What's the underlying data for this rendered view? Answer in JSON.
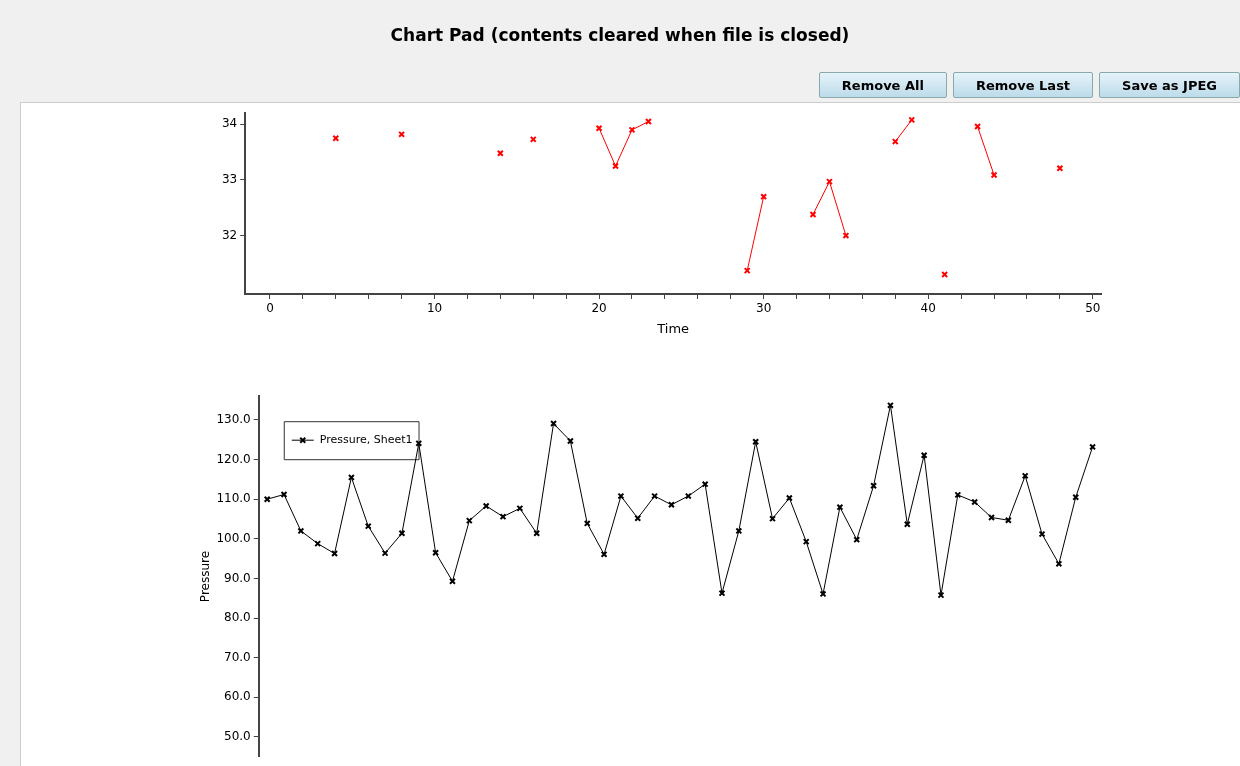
{
  "chart_data": [
    {
      "type": "other",
      "title": "Chart Pad (contents cleared when file is closed)",
      "annotations": [
        "Remove All",
        "Remove Last",
        "Save as JPEG"
      ]
    },
    {
      "type": "line",
      "xlabel": "Time",
      "xlim": [
        -1.5,
        50.5
      ],
      "ylim": [
        30.95,
        34.2
      ],
      "xticks": [
        0,
        {
          "value": 2,
          "label": null
        },
        {
          "value": 4,
          "label": null
        },
        {
          "value": 6,
          "label": null
        },
        {
          "value": 8,
          "label": null
        },
        10,
        {
          "value": 12,
          "label": null
        },
        {
          "value": 14,
          "label": null
        },
        {
          "value": 16,
          "label": null
        },
        {
          "value": 18,
          "label": null
        },
        20,
        {
          "value": 22,
          "label": null
        },
        {
          "value": 24,
          "label": null
        },
        {
          "value": 26,
          "label": null
        },
        {
          "value": 28,
          "label": null
        },
        30,
        {
          "value": 32,
          "label": null
        },
        {
          "value": 34,
          "label": null
        },
        {
          "value": 36,
          "label": null
        },
        {
          "value": 38,
          "label": null
        },
        40,
        {
          "value": 42,
          "label": null
        },
        {
          "value": 44,
          "label": null
        },
        {
          "value": 46,
          "label": null
        },
        {
          "value": 48,
          "label": null
        },
        50
      ],
      "yticks": [
        32,
        33,
        34
      ],
      "grid": false,
      "legend": false,
      "marker": "cross",
      "series": [
        {
          "color": "#ff0000",
          "x": [
            4
          ],
          "values": [
            33.75
          ]
        },
        {
          "color": "#ff0000",
          "x": [
            8
          ],
          "values": [
            33.82
          ]
        },
        {
          "color": "#ff0000",
          "x": [
            14
          ],
          "values": [
            33.48
          ]
        },
        {
          "color": "#ff0000",
          "x": [
            16
          ],
          "values": [
            33.73
          ]
        },
        {
          "color": "#ff0000",
          "x": [
            20,
            21,
            22,
            23
          ],
          "values": [
            33.93,
            33.25,
            33.9,
            34.05
          ]
        },
        {
          "color": "#ff0000",
          "x": [
            29,
            30
          ],
          "values": [
            31.37,
            32.7
          ]
        },
        {
          "color": "#ff0000",
          "x": [
            33,
            34,
            35
          ],
          "values": [
            32.38,
            32.97,
            32.0
          ]
        },
        {
          "color": "#ff0000",
          "x": [
            38,
            39
          ],
          "values": [
            33.69,
            34.08
          ]
        },
        {
          "color": "#ff0000",
          "x": [
            41
          ],
          "values": [
            31.3
          ]
        },
        {
          "color": "#ff0000",
          "x": [
            43,
            44
          ],
          "values": [
            33.96,
            33.09
          ]
        },
        {
          "color": "#ff0000",
          "x": [
            48
          ],
          "values": [
            33.21
          ]
        }
      ]
    },
    {
      "type": "line",
      "ylabel": "Pressure",
      "ylim": [
        45,
        136
      ],
      "yticks": [
        {
          "value": 50,
          "label": "50.0"
        },
        {
          "value": 60,
          "label": "60.0"
        },
        {
          "value": 70,
          "label": "70.0"
        },
        {
          "value": 80,
          "label": "80.0"
        },
        {
          "value": 90,
          "label": "90.0"
        },
        {
          "value": 100,
          "label": "100.0"
        },
        {
          "value": 110,
          "label": "110.0"
        },
        {
          "value": 120,
          "label": "120.0"
        },
        {
          "value": 130,
          "label": "130.0"
        }
      ],
      "tick_labels": "y",
      "grid": false,
      "legend": "top left",
      "marker": "cross",
      "categories": [
        null,
        null,
        null,
        null,
        null,
        null,
        null,
        null,
        null,
        null,
        null,
        null,
        null,
        null,
        null,
        null,
        null,
        null,
        null,
        null,
        null,
        null,
        null,
        null,
        null,
        null,
        null,
        null,
        null,
        null,
        null,
        null,
        null,
        null,
        null,
        null,
        null,
        null,
        null,
        null,
        null,
        null,
        null,
        null,
        null,
        null,
        null,
        null,
        null,
        null
      ],
      "series": [
        {
          "name": "Pressure, Sheet1",
          "color": "#000000",
          "values": [
            110,
            111.2,
            102,
            98.8,
            96.3,
            115.5,
            103.2,
            96.4,
            101.4,
            124.1,
            96.5,
            89.3,
            104.6,
            108.3,
            105.6,
            107.7,
            101.4,
            129.1,
            124.7,
            103.9,
            96.1,
            110.8,
            105.2,
            110.8,
            108.6,
            110.8,
            113.8,
            86.3,
            102.0,
            124.5,
            105.1,
            110.3,
            99.3,
            86.1,
            108.0,
            99.8,
            113.4,
            133.7,
            103.7,
            121.1,
            85.8,
            111.1,
            109.3,
            105.4,
            104.7,
            115.9,
            101.2,
            93.7,
            110.5,
            123.2
          ]
        }
      ]
    }
  ]
}
